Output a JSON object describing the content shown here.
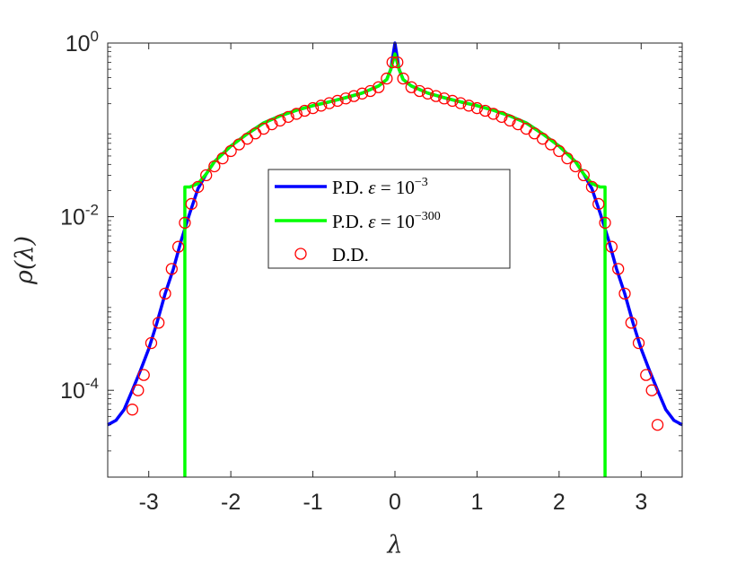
{
  "chart_data": {
    "type": "line",
    "title": "",
    "xlabel": "λ",
    "ylabel": "ρ(λ)",
    "xlim": [
      -3.5,
      3.5
    ],
    "ylim": [
      1e-05,
      1
    ],
    "y_scale": "log",
    "grid": false,
    "legend_position": "center",
    "x_ticks": [
      {
        "value": -3,
        "label": "-3"
      },
      {
        "value": -2,
        "label": "-2"
      },
      {
        "value": -1,
        "label": "-1"
      },
      {
        "value": 0,
        "label": "0"
      },
      {
        "value": 1,
        "label": "1"
      },
      {
        "value": 2,
        "label": "2"
      },
      {
        "value": 3,
        "label": "3"
      }
    ],
    "y_ticks": [
      {
        "value": 0.0001,
        "base": "10",
        "exp": "-4"
      },
      {
        "value": 0.01,
        "base": "10",
        "exp": "-2"
      },
      {
        "value": 1,
        "base": "10",
        "exp": "0"
      }
    ],
    "series": [
      {
        "name": "P.D. ε = 10^-3",
        "legend_text": "P.D. ",
        "legend_eps": "ε",
        "legend_eq": " = 10",
        "legend_sup": "−3",
        "color": "#0000ff",
        "style": "line",
        "x": [
          -3.5,
          -3.4,
          -3.3,
          -3.2,
          -3.1,
          -3.0,
          -2.9,
          -2.8,
          -2.7,
          -2.6,
          -2.5,
          -2.4,
          -2.3,
          -2.2,
          -2.0,
          -1.8,
          -1.6,
          -1.4,
          -1.2,
          -1.0,
          -0.8,
          -0.6,
          -0.4,
          -0.2,
          -0.1,
          -0.05,
          0,
          0.05,
          0.1,
          0.2,
          0.4,
          0.6,
          0.8,
          1.0,
          1.2,
          1.4,
          1.6,
          1.8,
          2.0,
          2.2,
          2.3,
          2.4,
          2.5,
          2.6,
          2.7,
          2.8,
          2.9,
          3.0,
          3.1,
          3.2,
          3.3,
          3.4,
          3.5
        ],
        "y": [
          4e-05,
          4.5e-05,
          6e-05,
          0.0001,
          0.00017,
          0.0003,
          0.0006,
          0.0013,
          0.0025,
          0.0055,
          0.011,
          0.021,
          0.031,
          0.043,
          0.065,
          0.09,
          0.12,
          0.145,
          0.168,
          0.19,
          0.21,
          0.235,
          0.265,
          0.32,
          0.38,
          0.5,
          1.0,
          0.5,
          0.38,
          0.32,
          0.265,
          0.235,
          0.21,
          0.19,
          0.168,
          0.145,
          0.12,
          0.09,
          0.065,
          0.043,
          0.031,
          0.021,
          0.011,
          0.0055,
          0.0025,
          0.0013,
          0.0006,
          0.0003,
          0.00017,
          0.0001,
          6e-05,
          4.5e-05,
          4e-05
        ]
      },
      {
        "name": "P.D. ε = 10^-300",
        "legend_text": "P.D. ",
        "legend_eps": "ε",
        "legend_eq": " = 10",
        "legend_sup": "−300",
        "color": "#00ff00",
        "style": "line",
        "x": [
          -2.56,
          -2.56,
          -2.5,
          -2.4,
          -2.3,
          -2.2,
          -2.0,
          -1.8,
          -1.6,
          -1.4,
          -1.2,
          -1.0,
          -0.8,
          -0.6,
          -0.4,
          -0.2,
          -0.1,
          -0.05,
          0,
          0.05,
          0.1,
          0.2,
          0.4,
          0.6,
          0.8,
          1.0,
          1.2,
          1.4,
          1.6,
          1.8,
          2.0,
          2.2,
          2.3,
          2.4,
          2.5,
          2.56,
          2.56
        ],
        "y": [
          1e-05,
          0.022,
          0.022,
          0.024,
          0.031,
          0.043,
          0.065,
          0.09,
          0.12,
          0.145,
          0.168,
          0.19,
          0.21,
          0.235,
          0.265,
          0.32,
          0.38,
          0.5,
          0.75,
          0.5,
          0.38,
          0.32,
          0.265,
          0.235,
          0.21,
          0.19,
          0.168,
          0.145,
          0.12,
          0.09,
          0.065,
          0.043,
          0.031,
          0.024,
          0.022,
          0.022,
          1e-05
        ]
      },
      {
        "name": "D.D.",
        "legend_text": "D.D.",
        "color": "#ff0000",
        "style": "markers",
        "x": [
          -3.2,
          -3.13,
          -3.06,
          -2.97,
          -2.88,
          -2.8,
          -2.72,
          -2.64,
          -2.56,
          -2.48,
          -2.4,
          -2.3,
          -2.2,
          -2.1,
          -2.0,
          -1.9,
          -1.8,
          -1.7,
          -1.6,
          -1.5,
          -1.4,
          -1.3,
          -1.2,
          -1.1,
          -1.0,
          -0.9,
          -0.8,
          -0.7,
          -0.6,
          -0.5,
          -0.4,
          -0.3,
          -0.2,
          -0.1,
          -0.03,
          0.03,
          0.1,
          0.2,
          0.3,
          0.4,
          0.5,
          0.6,
          0.7,
          0.8,
          0.9,
          1.0,
          1.1,
          1.2,
          1.3,
          1.4,
          1.5,
          1.6,
          1.7,
          1.8,
          1.9,
          2.0,
          2.1,
          2.2,
          2.3,
          2.4,
          2.48,
          2.56,
          2.64,
          2.72,
          2.8,
          2.88,
          2.97,
          3.06,
          3.13,
          3.2
        ],
        "y": [
          6e-05,
          0.0001,
          0.00015,
          0.00035,
          0.0006,
          0.0013,
          0.0025,
          0.0045,
          0.0085,
          0.014,
          0.022,
          0.03,
          0.038,
          0.047,
          0.057,
          0.068,
          0.079,
          0.091,
          0.103,
          0.116,
          0.128,
          0.141,
          0.153,
          0.166,
          0.178,
          0.19,
          0.203,
          0.216,
          0.23,
          0.245,
          0.262,
          0.28,
          0.31,
          0.39,
          0.6,
          0.6,
          0.39,
          0.31,
          0.28,
          0.262,
          0.245,
          0.23,
          0.216,
          0.203,
          0.19,
          0.178,
          0.166,
          0.153,
          0.141,
          0.128,
          0.116,
          0.103,
          0.091,
          0.079,
          0.068,
          0.057,
          0.047,
          0.038,
          0.03,
          0.022,
          0.014,
          0.0085,
          0.0045,
          0.0025,
          0.0013,
          0.0006,
          0.00035,
          0.00015,
          0.0001,
          4e-05
        ]
      }
    ]
  }
}
